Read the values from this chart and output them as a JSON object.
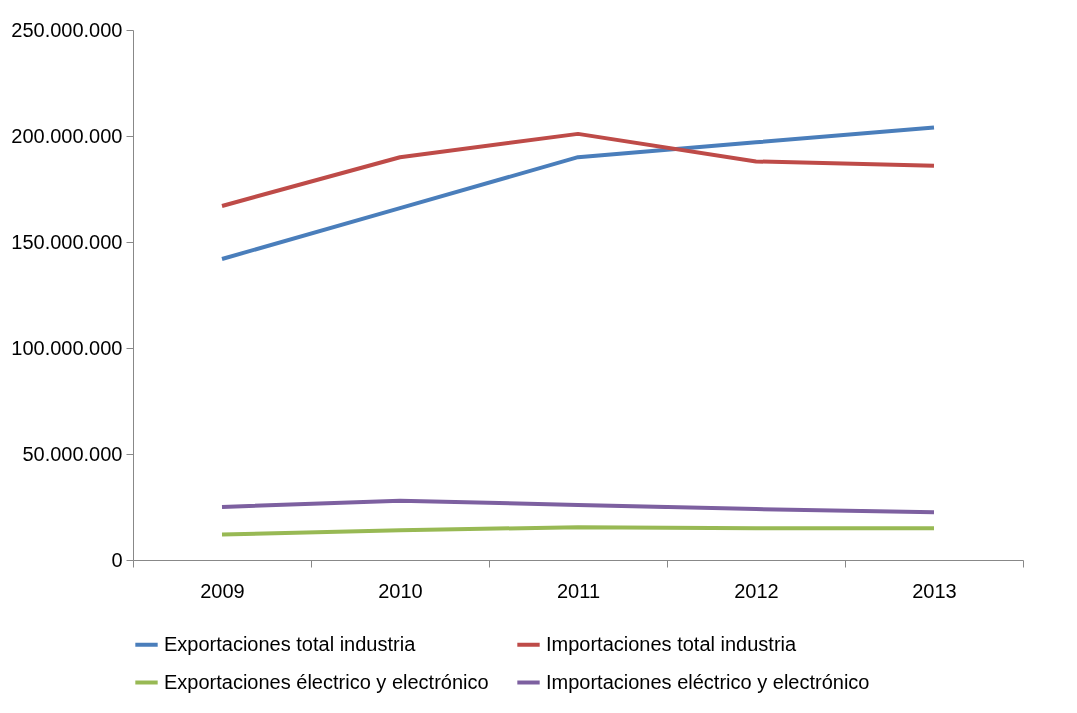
{
  "chart_data": {
    "type": "line",
    "categories": [
      "2009",
      "2010",
      "2011",
      "2012",
      "2013"
    ],
    "series": [
      {
        "name": "Exportaciones total industria",
        "color": "#4a7ebb",
        "values": [
          142000000,
          166000000,
          190000000,
          197000000,
          204000000
        ]
      },
      {
        "name": "Importaciones total industria",
        "color": "#be4b48",
        "values": [
          167000000,
          190000000,
          201000000,
          188000000,
          186000000
        ]
      },
      {
        "name": "Exportaciones électrico y electrónico",
        "color": "#98b954",
        "values": [
          12000000,
          14000000,
          15500000,
          15000000,
          15000000
        ]
      },
      {
        "name": "Importaciones eléctrico y electrónico",
        "color": "#7d60a0",
        "values": [
          25000000,
          28000000,
          26000000,
          24000000,
          22500000
        ]
      }
    ],
    "ylim": [
      0,
      250000000
    ],
    "yticks": [
      0,
      {
        "value": 50000000,
        "label": "50.000.000"
      },
      {
        "value": 100000000,
        "label": "100.000.000"
      },
      {
        "value": 150000000,
        "label": "150.000.000"
      },
      {
        "value": 200000000,
        "label": "200.000.000"
      },
      {
        "value": 250000000,
        "label": "250.000.000"
      }
    ],
    "grid": false,
    "legend": "bottom",
    "marker": "none",
    "line_style": "solid"
  }
}
